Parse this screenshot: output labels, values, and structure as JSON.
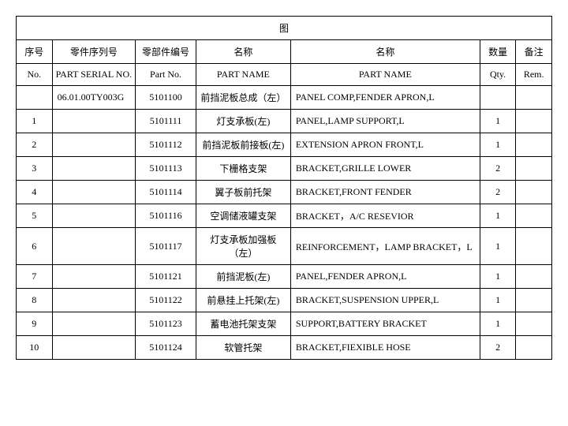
{
  "title": "图",
  "headers_cn": {
    "no": "序号",
    "serial": "零件序列号",
    "partno": "零部件编号",
    "name1": "名称",
    "name2": "名称",
    "qty": "数量",
    "remark": "备注"
  },
  "headers_en": {
    "no": "No.",
    "serial": "PART SERIAL NO.",
    "partno": "Part No.",
    "name1": "PART NAME",
    "name2": "PART NAME",
    "qty": "Qty.",
    "remark": "Rem."
  },
  "rows": [
    {
      "no": "",
      "serial": "06.01.00TY003G",
      "partno": "5101100",
      "cn": "前挡泥板总成（左）",
      "en": "PANEL COMP,FENDER APRON,L",
      "qty": "",
      "rem": ""
    },
    {
      "no": "1",
      "serial": "",
      "partno": "5101111",
      "cn": "灯支承板(左)",
      "en": "PANEL,LAMP SUPPORT,L",
      "qty": "1",
      "rem": ""
    },
    {
      "no": "2",
      "serial": "",
      "partno": "5101112",
      "cn": "前挡泥板前接板(左)",
      "en": "EXTENSION APRON FRONT,L",
      "qty": "1",
      "rem": ""
    },
    {
      "no": "3",
      "serial": "",
      "partno": "5101113",
      "cn": "下栅格支架",
      "en": "BRACKET,GRILLE LOWER",
      "qty": "2",
      "rem": ""
    },
    {
      "no": "4",
      "serial": "",
      "partno": "5101114",
      "cn": "翼子板前托架",
      "en": "BRACKET,FRONT FENDER",
      "qty": "2",
      "rem": ""
    },
    {
      "no": "5",
      "serial": "",
      "partno": "5101116",
      "cn": "空调储液罐支架",
      "en": "BRACKET，A/C RESEVIOR",
      "qty": "1",
      "rem": ""
    },
    {
      "no": "6",
      "serial": "",
      "partno": "5101117",
      "cn": "灯支承板加强板（左）",
      "en": "REINFORCEMENT，LAMP BRACKET，L",
      "qty": "1",
      "rem": ""
    },
    {
      "no": "7",
      "serial": "",
      "partno": "5101121",
      "cn": "前挡泥板(左)",
      "en": "PANEL,FENDER APRON,L",
      "qty": "1",
      "rem": ""
    },
    {
      "no": "8",
      "serial": "",
      "partno": "5101122",
      "cn": "前悬挂上托架(左)",
      "en": "BRACKET,SUSPENSION UPPER,L",
      "qty": "1",
      "rem": ""
    },
    {
      "no": "9",
      "serial": "",
      "partno": "5101123",
      "cn": "蓄电池托架支架",
      "en": "SUPPORT,BATTERY BRACKET",
      "qty": "1",
      "rem": ""
    },
    {
      "no": "10",
      "serial": "",
      "partno": "5101124",
      "cn": "软管托架",
      "en": "BRACKET,FIEXIBLE HOSE",
      "qty": "2",
      "rem": ""
    }
  ]
}
